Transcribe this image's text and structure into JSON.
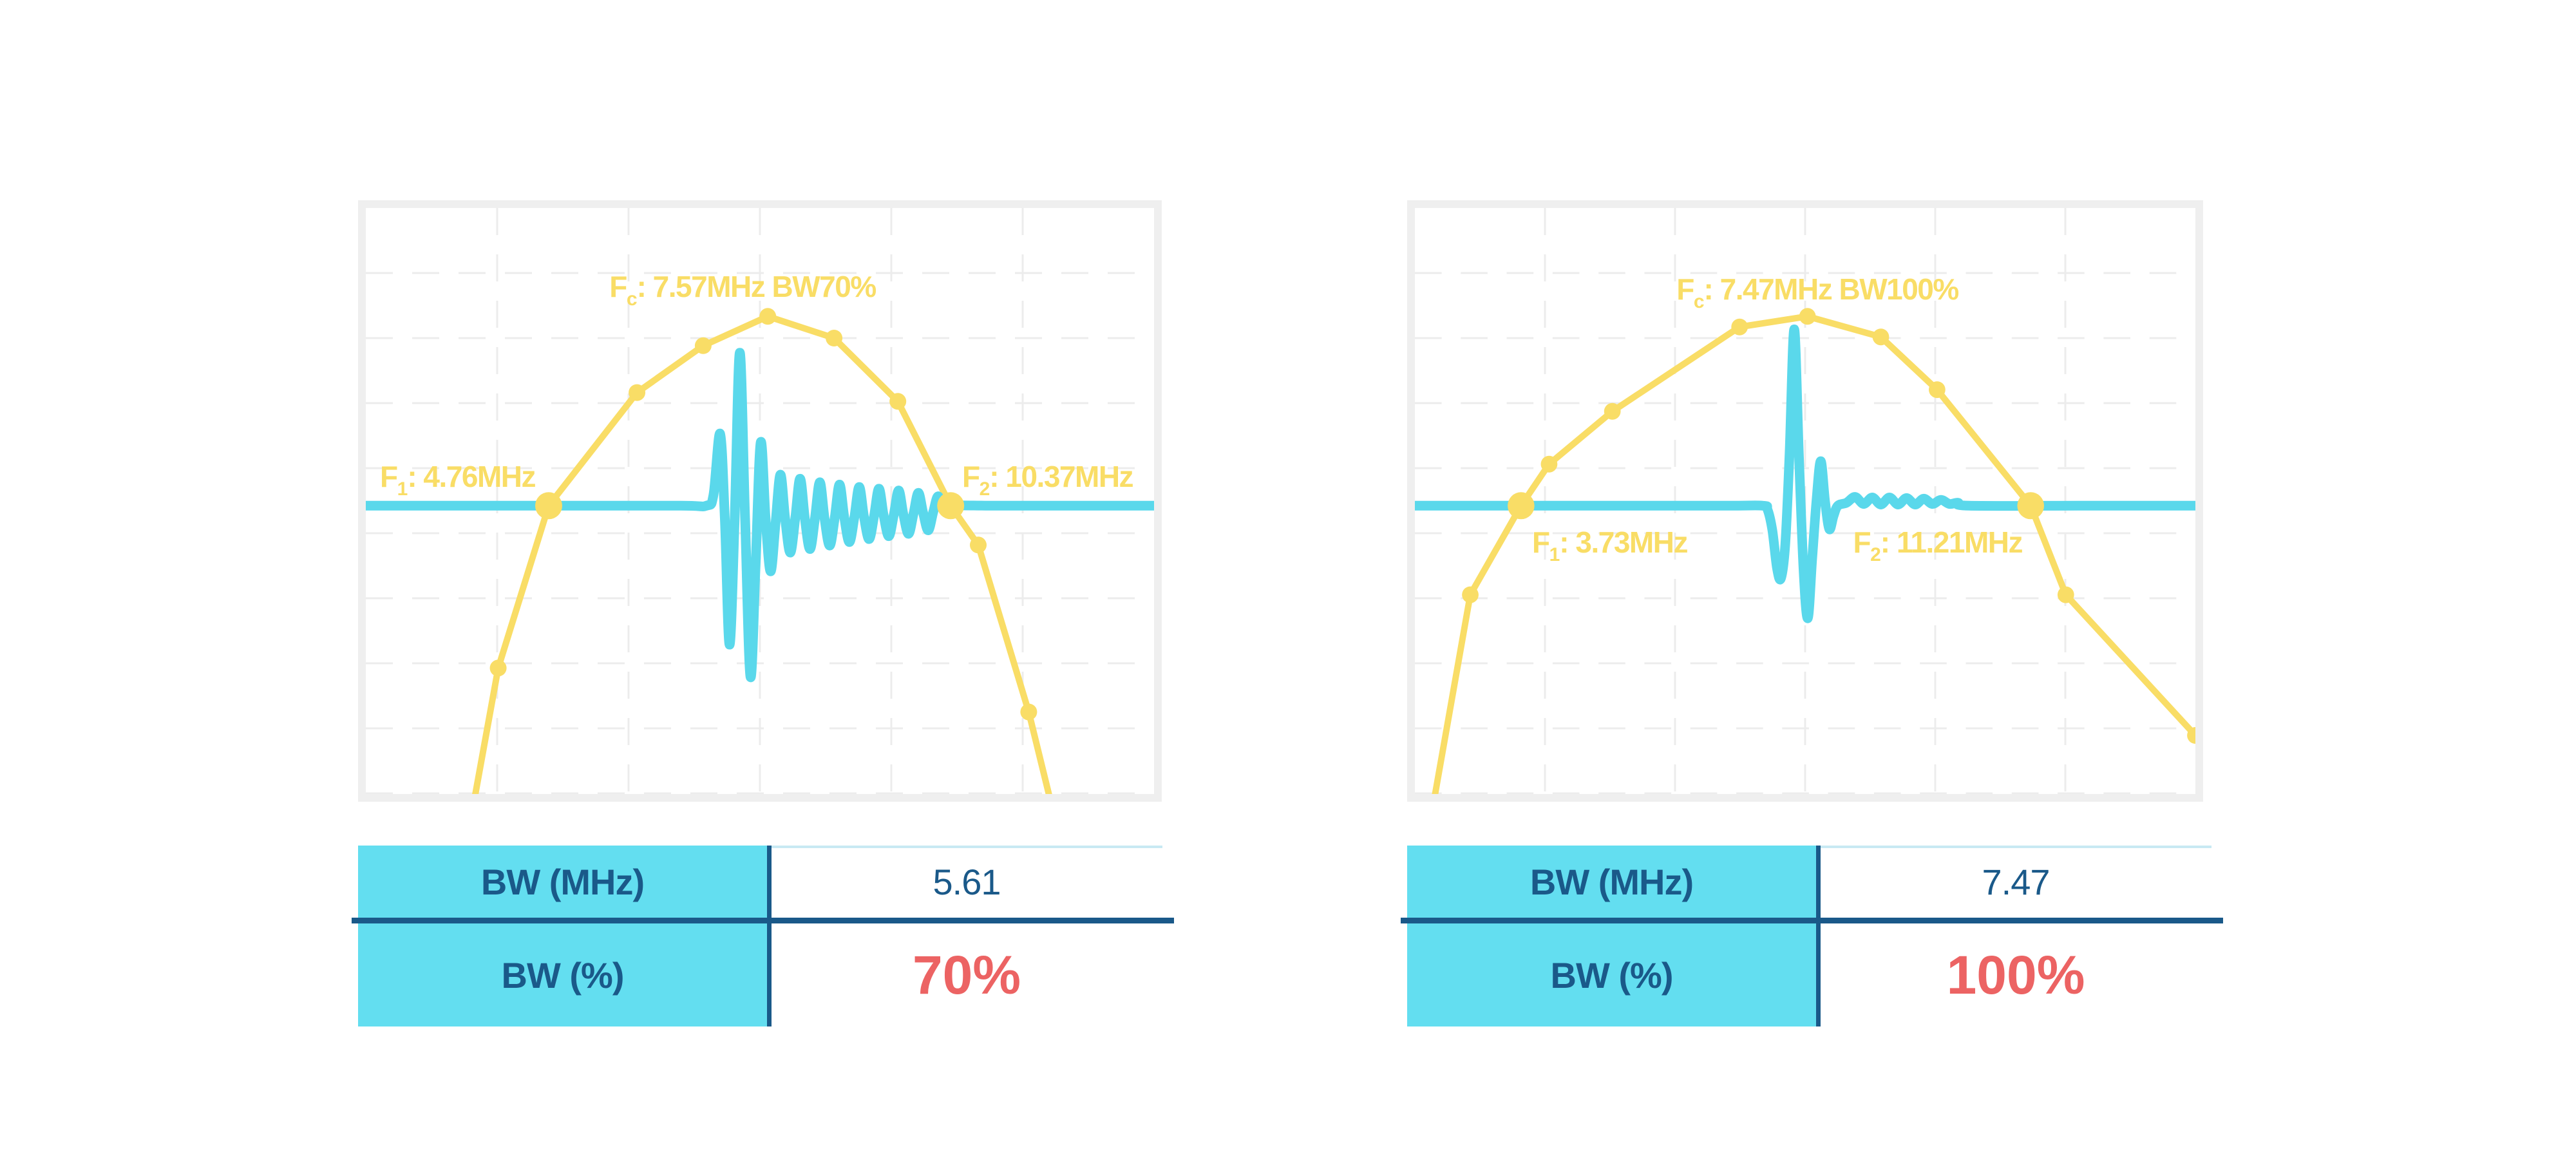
{
  "colors": {
    "spectrum": "#f9dd66",
    "pulse": "#5ad8eb",
    "grid": "#ececec",
    "frame": "#efefef",
    "table_header_bg": "#63def0",
    "table_text": "#1a5989",
    "divider_line": "#1a5989",
    "value_red": "#ec6363",
    "thin_top_line": "#c8e9f3"
  },
  "panels": [
    {
      "chart_labels": {
        "fc": {
          "base": "F",
          "sub": "c",
          "rest": ": 7.57MHz BW70%"
        },
        "f1": {
          "base": "F",
          "sub": "1",
          "rest": ": 4.76MHz"
        },
        "f2": {
          "base": "F",
          "sub": "2",
          "rest": ": 10.37MHz"
        }
      },
      "table": {
        "rows": [
          {
            "label": "BW (MHz)",
            "value": "5.61"
          },
          {
            "label": "BW (%)",
            "value": "70%"
          }
        ]
      }
    },
    {
      "chart_labels": {
        "fc": {
          "base": "F",
          "sub": "c",
          "rest": ": 7.47MHz BW100%"
        },
        "f1": {
          "base": "F",
          "sub": "1",
          "rest": ": 3.73MHz"
        },
        "f2": {
          "base": "F",
          "sub": "2",
          "rest": ": 11.21MHz"
        }
      },
      "table": {
        "rows": [
          {
            "label": "BW (MHz)",
            "value": "7.47"
          },
          {
            "label": "BW (%)",
            "value": "100%"
          }
        ]
      }
    }
  ],
  "chart_data": [
    {
      "type": "line",
      "title": "Fc: 7.57MHz BW70%",
      "annotations": {
        "fc_mhz": 7.57,
        "f1_mhz": 4.76,
        "f2_mhz": 10.37,
        "bw_mhz": 5.61,
        "bw_percent": 70
      },
      "axes": {
        "x": "frequency (unlabeled)",
        "y": "amplitude (unlabeled)",
        "grid": "light dashed",
        "legend": "none"
      },
      "coords": "fraction_of_plot_area, y measured downward; baseline at 0.508",
      "series": [
        {
          "name": "frequency-spectrum",
          "style": "line+markers",
          "points": [
            [
              0.135,
              1.03,
              0
            ],
            [
              0.168,
              0.785,
              1
            ],
            [
              0.232,
              0.508,
              2
            ],
            [
              0.344,
              0.315,
              1
            ],
            [
              0.428,
              0.235,
              1
            ],
            [
              0.51,
              0.185,
              1
            ],
            [
              0.594,
              0.222,
              1
            ],
            [
              0.675,
              0.33,
              1
            ],
            [
              0.742,
              0.508,
              2
            ],
            [
              0.777,
              0.575,
              1
            ],
            [
              0.841,
              0.86,
              1
            ],
            [
              0.872,
              1.03,
              0
            ]
          ]
        },
        {
          "name": "pulse-echo-waveform",
          "style": "smooth-line",
          "points": [
            [
              0,
              0.508
            ],
            [
              0.25,
              0.508
            ],
            [
              0.4,
              0.508
            ],
            [
              0.432,
              0.508
            ],
            [
              0.441,
              0.49
            ],
            [
              0.4495,
              0.385
            ],
            [
              0.4555,
              0.53
            ],
            [
              0.4615,
              0.745
            ],
            [
              0.468,
              0.53
            ],
            [
              0.4745,
              0.247
            ],
            [
              0.4812,
              0.53
            ],
            [
              0.488,
              0.8
            ],
            [
              0.4945,
              0.61
            ],
            [
              0.501,
              0.4
            ],
            [
              0.5072,
              0.53
            ],
            [
              0.5135,
              0.62
            ],
            [
              0.5197,
              0.54
            ],
            [
              0.526,
              0.455
            ],
            [
              0.532,
              0.53
            ],
            [
              0.5385,
              0.588
            ],
            [
              0.5448,
              0.53
            ],
            [
              0.551,
              0.462
            ],
            [
              0.557,
              0.53
            ],
            [
              0.5635,
              0.582
            ],
            [
              0.5698,
              0.53
            ],
            [
              0.576,
              0.468
            ],
            [
              0.582,
              0.53
            ],
            [
              0.5885,
              0.576
            ],
            [
              0.5948,
              0.53
            ],
            [
              0.601,
              0.472
            ],
            [
              0.607,
              0.528
            ],
            [
              0.6135,
              0.57
            ],
            [
              0.6198,
              0.528
            ],
            [
              0.626,
              0.476
            ],
            [
              0.632,
              0.527
            ],
            [
              0.6385,
              0.565
            ],
            [
              0.6448,
              0.526
            ],
            [
              0.651,
              0.479
            ],
            [
              0.657,
              0.525
            ],
            [
              0.6635,
              0.56
            ],
            [
              0.6698,
              0.524
            ],
            [
              0.676,
              0.482
            ],
            [
              0.682,
              0.523
            ],
            [
              0.6885,
              0.556
            ],
            [
              0.6948,
              0.522
            ],
            [
              0.701,
              0.486
            ],
            [
              0.707,
              0.52
            ],
            [
              0.7135,
              0.55
            ],
            [
              0.72,
              0.518
            ],
            [
              0.726,
              0.492
            ],
            [
              0.733,
              0.515
            ],
            [
              0.742,
              0.508
            ],
            [
              0.8,
              0.508
            ],
            [
              0.92,
              0.508
            ],
            [
              1.0,
              0.508
            ]
          ]
        }
      ]
    },
    {
      "type": "line",
      "title": "Fc: 7.47MHz BW100%",
      "annotations": {
        "fc_mhz": 7.47,
        "f1_mhz": 3.73,
        "f2_mhz": 11.21,
        "bw_mhz": 7.47,
        "bw_percent": 100
      },
      "axes": {
        "x": "frequency (unlabeled)",
        "y": "amplitude (unlabeled)",
        "grid": "light dashed",
        "legend": "none"
      },
      "coords": "fraction_of_plot_area, y measured downward; baseline at 0.508",
      "series": [
        {
          "name": "frequency-spectrum",
          "style": "line+markers",
          "points": [
            [
              0.022,
              1.03,
              0
            ],
            [
              0.071,
              0.66,
              1
            ],
            [
              0.136,
              0.508,
              2
            ],
            [
              0.172,
              0.437,
              1
            ],
            [
              0.253,
              0.347,
              1
            ],
            [
              0.416,
              0.203,
              1
            ],
            [
              0.503,
              0.185,
              1
            ],
            [
              0.597,
              0.22,
              1
            ],
            [
              0.669,
              0.31,
              1
            ],
            [
              0.789,
              0.508,
              2
            ],
            [
              0.834,
              0.66,
              1
            ],
            [
              1.0,
              0.9,
              1
            ]
          ]
        },
        {
          "name": "pulse-echo-waveform",
          "style": "smooth-line",
          "points": [
            [
              0,
              0.508
            ],
            [
              0.25,
              0.508
            ],
            [
              0.4,
              0.508
            ],
            [
              0.446,
              0.508
            ],
            [
              0.452,
              0.515
            ],
            [
              0.458,
              0.55
            ],
            [
              0.464,
              0.615
            ],
            [
              0.469,
              0.632
            ],
            [
              0.4745,
              0.575
            ],
            [
              0.48,
              0.42
            ],
            [
              0.486,
              0.207
            ],
            [
              0.492,
              0.42
            ],
            [
              0.498,
              0.62
            ],
            [
              0.5035,
              0.7
            ],
            [
              0.509,
              0.6
            ],
            [
              0.5145,
              0.5
            ],
            [
              0.52,
              0.432
            ],
            [
              0.5255,
              0.5
            ],
            [
              0.531,
              0.548
            ],
            [
              0.5365,
              0.525
            ],
            [
              0.542,
              0.508
            ],
            [
              0.553,
              0.503
            ],
            [
              0.564,
              0.493
            ],
            [
              0.575,
              0.505
            ],
            [
              0.586,
              0.494
            ],
            [
              0.597,
              0.506
            ],
            [
              0.608,
              0.494
            ],
            [
              0.619,
              0.506
            ],
            [
              0.63,
              0.495
            ],
            [
              0.641,
              0.506
            ],
            [
              0.652,
              0.496
            ],
            [
              0.663,
              0.505
            ],
            [
              0.674,
              0.498
            ],
            [
              0.685,
              0.505
            ],
            [
              0.696,
              0.503
            ],
            [
              0.71,
              0.508
            ],
            [
              0.85,
              0.508
            ],
            [
              1.0,
              0.508
            ]
          ]
        }
      ]
    }
  ]
}
